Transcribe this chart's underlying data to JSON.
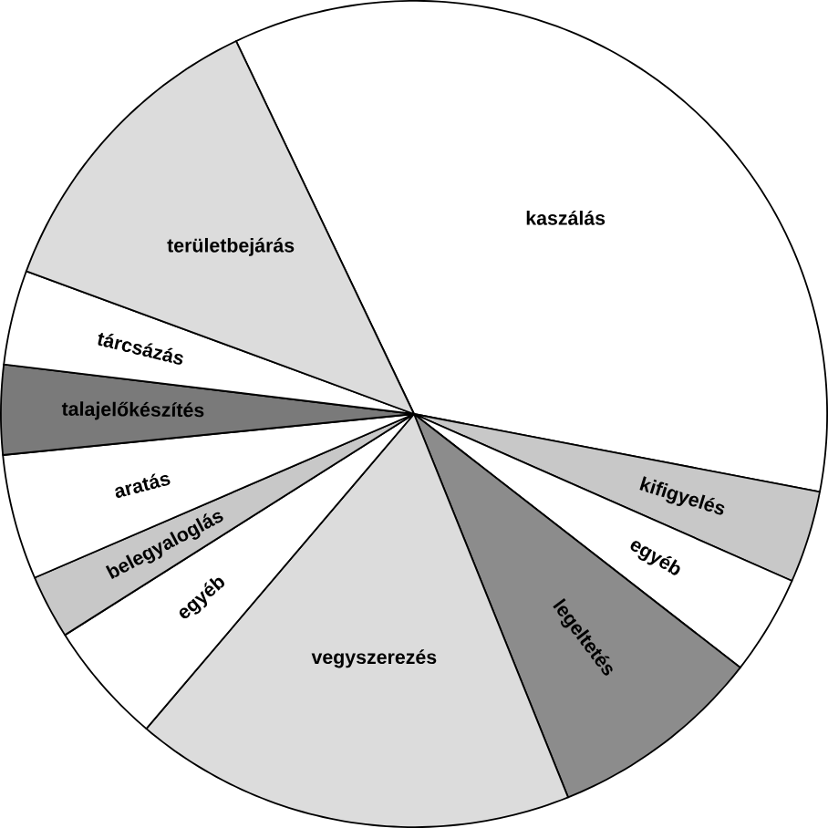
{
  "chart_data": {
    "type": "pie",
    "categories": [
      "kaszálás",
      "kifigyelés",
      "egyéb",
      "legeltetés",
      "vegyszerezés",
      "egyéb",
      "belegyaloglás",
      "aratás",
      "talajelőkészítés",
      "tárcsázás",
      "területbejárás"
    ],
    "values": [
      35.1,
      3.6,
      3.9,
      8.4,
      17.3,
      4.8,
      2.5,
      4.9,
      3.5,
      3.7,
      12.3
    ],
    "colors": [
      "#ffffff",
      "#c8c8c8",
      "#ffffff",
      "#8c8c8c",
      "#dcdcdc",
      "#ffffff",
      "#c8c8c8",
      "#ffffff",
      "#7a7a7a",
      "#ffffff",
      "#dcdcdc"
    ]
  }
}
